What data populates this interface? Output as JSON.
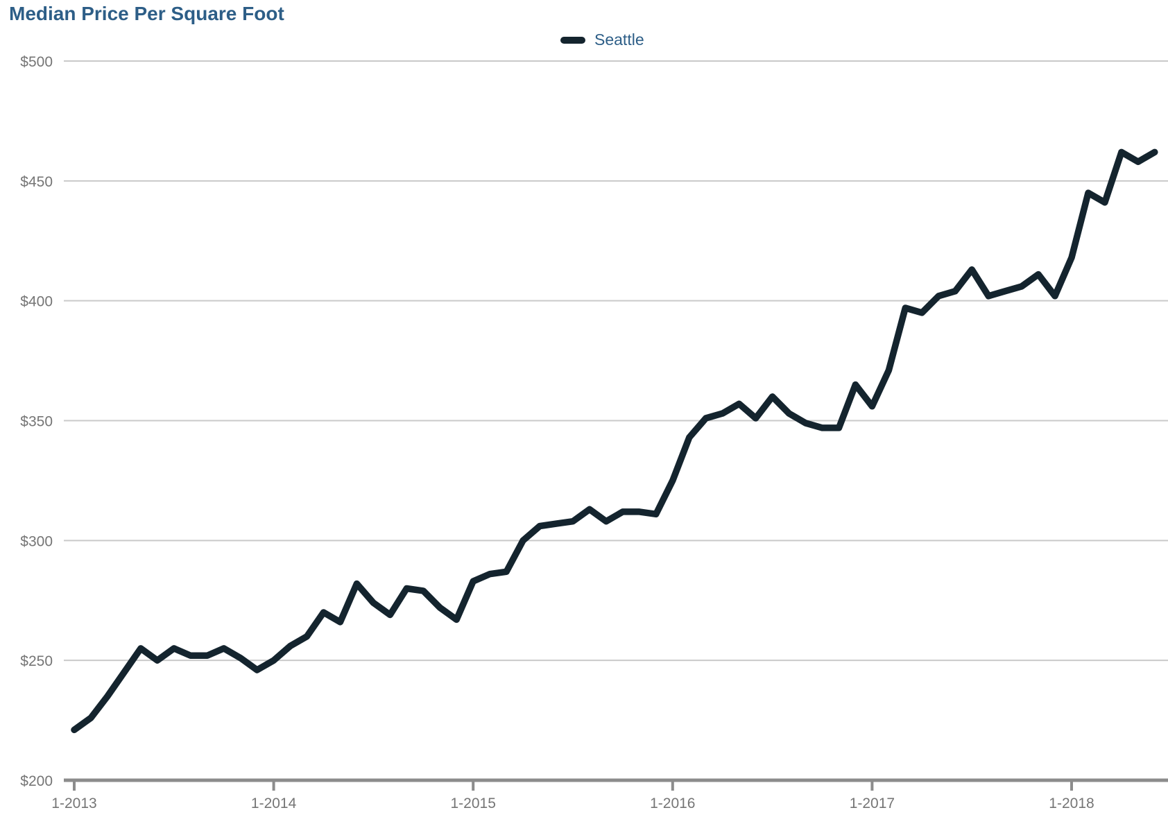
{
  "chart_data": {
    "type": "line",
    "title": "Median Price Per Square Foot",
    "title_color": "#2d5e87",
    "legend_position": "top-center",
    "grid": "horizontal",
    "x_start": "1-2013",
    "x_interval": "month",
    "x_tick_labels": [
      "1-2013",
      "1-2014",
      "1-2015",
      "1-2016",
      "1-2017",
      "1-2018"
    ],
    "x_tick_month_indices": [
      0,
      12,
      24,
      36,
      48,
      60
    ],
    "ylim": [
      200,
      500
    ],
    "y_ticks": [
      {
        "label": "$500",
        "value": 500
      },
      {
        "label": "$450",
        "value": 450
      },
      {
        "label": "$400",
        "value": 400
      },
      {
        "label": "$350",
        "value": 350
      },
      {
        "label": "$300",
        "value": 300
      },
      {
        "label": "$250",
        "value": 250
      },
      {
        "label": "$200",
        "value": 200
      }
    ],
    "axis_text_color": "#757575",
    "gridline_color": "#c9c9c9",
    "axis_line_color": "#8c8c8c",
    "series": [
      {
        "name": "Seattle",
        "color": "#14242e",
        "values": [
          221,
          226,
          235,
          245,
          255,
          250,
          255,
          252,
          252,
          255,
          251,
          246,
          250,
          256,
          260,
          270,
          266,
          282,
          274,
          269,
          280,
          279,
          272,
          267,
          283,
          286,
          287,
          300,
          306,
          307,
          308,
          313,
          308,
          312,
          312,
          311,
          325,
          343,
          351,
          353,
          357,
          351,
          360,
          353,
          349,
          347,
          347,
          365,
          356,
          371,
          397,
          395,
          402,
          404,
          413,
          402,
          404,
          406,
          411,
          402,
          418,
          445,
          441,
          462,
          458,
          462
        ]
      }
    ]
  }
}
